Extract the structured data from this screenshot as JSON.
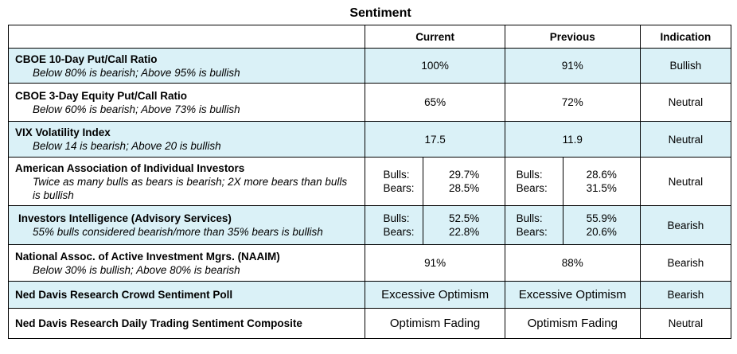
{
  "title": "Sentiment",
  "headers": {
    "current": "Current",
    "previous": "Previous",
    "indication": "Indication"
  },
  "rows": [
    {
      "name": "CBOE 10-Day Put/Call Ratio",
      "desc": "Below 80% is bearish; Above 95% is bullish",
      "current": "100%",
      "previous": "91%",
      "indication": "Bullish"
    },
    {
      "name": "CBOE 3-Day Equity Put/Call Ratio",
      "desc": "Below 60% is bearish; Above 73% is bullish",
      "current": "65%",
      "previous": "72%",
      "indication": "Neutral"
    },
    {
      "name": "VIX Volatility Index",
      "desc": "Below 14 is bearish; Above 20 is bullish",
      "current": "17.5",
      "previous": "11.9",
      "indication": "Neutral"
    },
    {
      "name": "American Association of Individual Investors",
      "desc": "Twice as many bulls as bears is bearish; 2X more bears than bulls is bullish",
      "current": {
        "bulls_label": "Bulls:",
        "bears_label": "Bears:",
        "bulls": "29.7%",
        "bears": "28.5%"
      },
      "previous": {
        "bulls_label": "Bulls:",
        "bears_label": "Bears:",
        "bulls": "28.6%",
        "bears": "31.5%"
      },
      "indication": "Neutral"
    },
    {
      "name": "Investors Intelligence (Advisory Services)",
      "desc": "55% bulls considered bearish/more than 35% bears is bullish",
      "current": {
        "bulls_label": "Bulls:",
        "bears_label": "Bears:",
        "bulls": "52.5%",
        "bears": "22.8%"
      },
      "previous": {
        "bulls_label": "Bulls:",
        "bears_label": "Bears:",
        "bulls": "55.9%",
        "bears": "20.6%"
      },
      "indication": "Bearish"
    },
    {
      "name": "National Assoc. of Active Investment Mgrs. (NAAIM)",
      "desc": "Below 30% is bullish; Above 80% is bearish",
      "current": "91%",
      "previous": "88%",
      "indication": "Bearish"
    },
    {
      "name": "Ned Davis Research Crowd Sentiment Poll",
      "current": "Excessive Optimism",
      "previous": "Excessive Optimism",
      "indication": "Bearish"
    },
    {
      "name": "Ned Davis Research Daily Trading Sentiment Composite",
      "current": "Optimism Fading",
      "previous": "Optimism Fading",
      "indication": "Neutral"
    }
  ],
  "colors": {
    "alt_row": "#daf1f7",
    "border": "#000000"
  }
}
